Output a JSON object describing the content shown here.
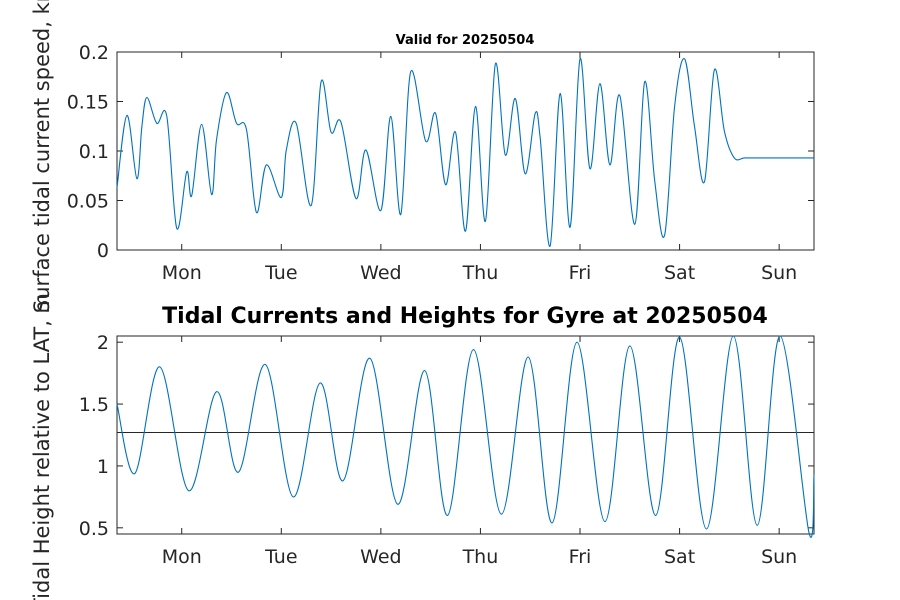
{
  "chart_data": [
    {
      "type": "line",
      "title": "Valid for 20250504",
      "ylabel": "Surface tidal current speed, kn",
      "ylim": [
        0,
        0.2
      ],
      "yticks": [
        "0",
        "0.05",
        "0.1",
        "0.15",
        "0.2"
      ],
      "yticks_values": [
        0,
        0.05,
        0.1,
        0.15,
        0.2
      ],
      "xticks": [
        "Mon",
        "Tue",
        "Wed",
        "Thu",
        "Fri",
        "Sat",
        "Sun"
      ],
      "xticks_values": [
        1,
        2,
        3,
        4,
        5,
        6,
        7
      ],
      "xlim": [
        0.35,
        7.35
      ],
      "color": "#0072bd",
      "series": [
        {
          "x": [
            0.35,
            0.45,
            0.55,
            0.6,
            0.65,
            0.75,
            0.85,
            0.95,
            1.05,
            1.1,
            1.2,
            1.3,
            1.35,
            1.45,
            1.55,
            1.65,
            1.75,
            1.85,
            2.0,
            2.05,
            2.15,
            2.3,
            2.4,
            2.5,
            2.6,
            2.75,
            2.85,
            3.0,
            3.1,
            3.2,
            3.3,
            3.45,
            3.55,
            3.65,
            3.75,
            3.85,
            3.95,
            4.05,
            4.15,
            4.25,
            4.35,
            4.45,
            4.55,
            4.6,
            4.7,
            4.8,
            4.9,
            5.0,
            5.1,
            5.2,
            5.3,
            5.4,
            5.55,
            5.65,
            5.75,
            5.85,
            5.95,
            6.05,
            6.15,
            6.25,
            6.35,
            6.45,
            6.55,
            6.65,
            6.75,
            6.85,
            6.95,
            7.05,
            7.15,
            7.25,
            7.35
          ],
          "y": [
            0.063,
            0.136,
            0.072,
            0.125,
            0.154,
            0.128,
            0.135,
            0.022,
            0.079,
            0.055,
            0.127,
            0.056,
            0.112,
            0.159,
            0.128,
            0.122,
            0.038,
            0.086,
            0.053,
            0.101,
            0.128,
            0.045,
            0.17,
            0.119,
            0.129,
            0.052,
            0.101,
            0.04,
            0.135,
            0.036,
            0.18,
            0.11,
            0.138,
            0.066,
            0.119,
            0.019,
            0.145,
            0.029,
            0.188,
            0.096,
            0.153,
            0.077,
            0.138,
            0.113,
            0.004,
            0.158,
            0.023,
            0.193,
            0.082,
            0.168,
            0.086,
            0.156,
            0.026,
            0.17,
            0.07,
            0.015,
            0.145,
            0.193,
            0.125,
            0.069,
            0.182,
            0.12,
            0.093,
            0.093,
            0.093,
            0.093,
            0.093,
            0.093,
            0.093,
            0.093,
            0.093
          ]
        }
      ]
    },
    {
      "type": "line",
      "title": "Tidal Currents and Heights for Gyre at 20250504",
      "ylabel": "Tidal Height relative to LAT, m",
      "ylim": [
        0.45,
        2.05
      ],
      "yticks": [
        "0.5",
        "1",
        "1.5",
        "2"
      ],
      "yticks_values": [
        0.5,
        1,
        1.5,
        2
      ],
      "xticks": [
        "Mon",
        "Tue",
        "Wed",
        "Thu",
        "Fri",
        "Sat",
        "Sun"
      ],
      "xticks_values": [
        1,
        2,
        3,
        4,
        5,
        6,
        7
      ],
      "xlim": [
        0.35,
        7.35
      ],
      "reference_line": 1.27,
      "color": "#0072bd",
      "series": [
        {
          "x": [
            0.35,
            0.53,
            0.78,
            1.07,
            1.35,
            1.57,
            1.84,
            2.12,
            2.39,
            2.62,
            2.89,
            3.17,
            3.44,
            3.67,
            3.93,
            4.21,
            4.48,
            4.72,
            4.97,
            5.25,
            5.5,
            5.76,
            6.0,
            6.27,
            6.54,
            6.78,
            7.01,
            7.3,
            7.35
          ],
          "y": [
            1.5,
            0.94,
            1.8,
            0.8,
            1.6,
            0.95,
            1.82,
            0.75,
            1.67,
            0.88,
            1.87,
            0.69,
            1.77,
            0.6,
            1.94,
            0.61,
            1.88,
            0.54,
            2.0,
            0.55,
            1.97,
            0.6,
            2.04,
            0.49,
            2.05,
            0.52,
            2.05,
            0.46,
            0.93
          ]
        }
      ]
    }
  ]
}
